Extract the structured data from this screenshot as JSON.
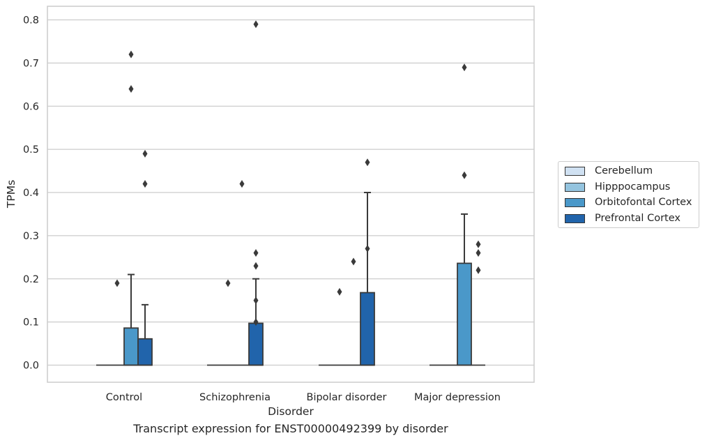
{
  "chart_data": {
    "type": "box",
    "title": "",
    "caption": "Transcript expression for ENST00000492399 by disorder",
    "xlabel": "Disorder",
    "ylabel": "TPMs",
    "ylim": [
      -0.04,
      0.83
    ],
    "yticks": [
      "0.0",
      "0.1",
      "0.2",
      "0.3",
      "0.4",
      "0.5",
      "0.6",
      "0.7",
      "0.8"
    ],
    "ytick_values": [
      0,
      0.1,
      0.2,
      0.3,
      0.4,
      0.5,
      0.6,
      0.7,
      0.8
    ],
    "grid": "horizontal",
    "legend_position": "right",
    "categories": [
      "Control",
      "Schizophrenia",
      "Bipolar disorder",
      "Major depression"
    ],
    "series": [
      {
        "name": "Cerebellum",
        "color": "#d0e1f2",
        "boxes": [
          {
            "q1": 0,
            "median": 0,
            "q3": 0,
            "whisker_low": 0,
            "whisker_high": 0,
            "outliers": []
          },
          {
            "q1": 0,
            "median": 0,
            "q3": 0,
            "whisker_low": 0,
            "whisker_high": 0,
            "outliers": []
          },
          {
            "q1": 0,
            "median": 0,
            "q3": 0,
            "whisker_low": 0,
            "whisker_high": 0,
            "outliers": []
          },
          {
            "q1": 0,
            "median": 0,
            "q3": 0,
            "whisker_low": 0,
            "whisker_high": 0,
            "outliers": []
          }
        ]
      },
      {
        "name": "Hipppocampus",
        "color": "#94c4df",
        "boxes": [
          {
            "q1": 0,
            "median": 0,
            "q3": 0,
            "whisker_low": 0,
            "whisker_high": 0,
            "outliers": [
              0.19
            ]
          },
          {
            "q1": 0,
            "median": 0,
            "q3": 0,
            "whisker_low": 0,
            "whisker_high": 0,
            "outliers": [
              0.19
            ]
          },
          {
            "q1": 0,
            "median": 0,
            "q3": 0,
            "whisker_low": 0,
            "whisker_high": 0,
            "outliers": [
              0.17
            ]
          },
          {
            "q1": 0,
            "median": 0,
            "q3": 0,
            "whisker_low": 0,
            "whisker_high": 0,
            "outliers": []
          }
        ]
      },
      {
        "name": "Orbitofontal Cortex",
        "color": "#4a98c9",
        "boxes": [
          {
            "q1": 0,
            "median": 0,
            "q3": 0.086,
            "whisker_low": 0,
            "whisker_high": 0.21,
            "outliers": [
              0.72,
              0.64
            ]
          },
          {
            "q1": 0,
            "median": 0,
            "q3": 0,
            "whisker_low": 0,
            "whisker_high": 0,
            "outliers": [
              0.42
            ]
          },
          {
            "q1": 0,
            "median": 0,
            "q3": 0,
            "whisker_low": 0,
            "whisker_high": 0,
            "outliers": [
              0.24
            ]
          },
          {
            "q1": 0,
            "median": 0,
            "q3": 0.236,
            "whisker_low": 0,
            "whisker_high": 0.35,
            "outliers": [
              0.44,
              0.69
            ]
          }
        ]
      },
      {
        "name": "Prefrontal Cortex",
        "color": "#2164ab",
        "boxes": [
          {
            "q1": 0,
            "median": 0,
            "q3": 0.061,
            "whisker_low": 0,
            "whisker_high": 0.14,
            "outliers": [
              0.49,
              0.42
            ]
          },
          {
            "q1": 0,
            "median": 0,
            "q3": 0.097,
            "whisker_low": 0,
            "whisker_high": 0.2,
            "outliers": [
              0.79,
              0.26,
              0.23,
              0.15,
              0.1
            ]
          },
          {
            "q1": 0,
            "median": 0,
            "q3": 0.168,
            "whisker_low": 0,
            "whisker_high": 0.4,
            "outliers": [
              0.47,
              0.27
            ]
          },
          {
            "q1": 0,
            "median": 0,
            "q3": 0,
            "whisker_low": 0,
            "whisker_high": 0,
            "outliers": [
              0.28,
              0.26,
              0.22
            ]
          }
        ]
      }
    ]
  }
}
